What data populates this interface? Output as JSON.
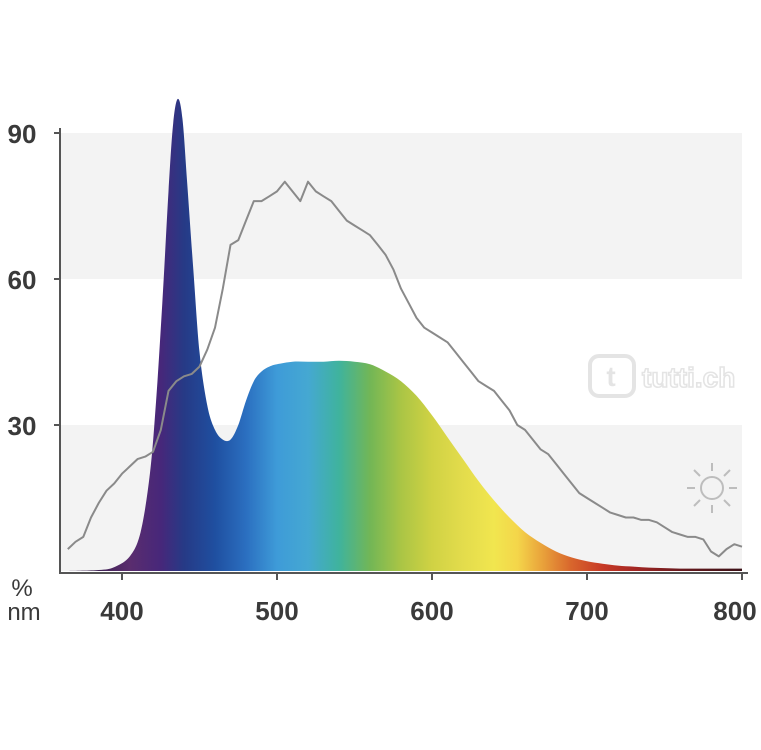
{
  "chart_data": {
    "type": "area",
    "title": "",
    "xlabel": "nm",
    "ylabel": "%",
    "xlim": [
      360,
      800
    ],
    "ylim": [
      0,
      105
    ],
    "x_ticks": [
      400,
      500,
      600,
      700,
      800
    ],
    "y_ticks": [
      30,
      60,
      90
    ],
    "x_tick_labels": [
      "400",
      "500",
      "600",
      "700",
      "800"
    ],
    "y_tick_labels": [
      "30",
      "60",
      "90"
    ],
    "bands": [
      [
        0,
        30
      ],
      [
        60,
        90
      ]
    ],
    "band_color": "#f3f3f3",
    "grid": false,
    "series": [
      {
        "kind": "filled-spectrum",
        "x": [
          365,
          385,
          395,
          405,
          412,
          418,
          422,
          426,
          430,
          433,
          436,
          439,
          442,
          446,
          450,
          455,
          460,
          465,
          470,
          475,
          480,
          485,
          490,
          495,
          500,
          510,
          520,
          530,
          540,
          550,
          560,
          570,
          580,
          590,
          600,
          610,
          620,
          630,
          640,
          650,
          660,
          670,
          680,
          690,
          700,
          710,
          720,
          730,
          740,
          750,
          760,
          770,
          780,
          790,
          800
        ],
        "y": [
          0,
          0.2,
          0.8,
          3,
          8,
          20,
          35,
          55,
          78,
          92,
          97,
          93,
          80,
          62,
          45,
          34,
          29,
          27,
          27,
          30,
          35,
          39,
          41,
          42,
          42.5,
          43,
          43,
          43,
          43.2,
          43,
          42.5,
          41,
          39,
          36,
          32,
          27.5,
          23,
          18.5,
          14.5,
          11,
          8,
          5.8,
          4,
          2.8,
          2,
          1.5,
          1.1,
          0.9,
          0.7,
          0.6,
          0.5,
          0.5,
          0.5,
          0.5,
          0.5
        ]
      },
      {
        "kind": "reference-line",
        "color": "#8a8a8a",
        "x": [
          365,
          370,
          375,
          380,
          385,
          390,
          395,
          400,
          405,
          410,
          415,
          420,
          425,
          430,
          435,
          440,
          445,
          450,
          455,
          460,
          465,
          470,
          475,
          480,
          485,
          490,
          495,
          500,
          505,
          510,
          515,
          520,
          525,
          530,
          535,
          540,
          545,
          550,
          555,
          560,
          565,
          570,
          575,
          580,
          585,
          590,
          595,
          600,
          605,
          610,
          615,
          620,
          625,
          630,
          635,
          640,
          645,
          650,
          655,
          660,
          665,
          670,
          675,
          680,
          685,
          690,
          695,
          700,
          705,
          710,
          715,
          720,
          725,
          730,
          735,
          740,
          745,
          750,
          755,
          760,
          765,
          770,
          775,
          780,
          785,
          790,
          795,
          800
        ],
        "y": [
          4.5,
          6,
          7,
          11,
          14,
          16.5,
          18,
          20,
          21.5,
          23,
          23.5,
          24.5,
          29,
          37,
          39,
          40,
          40.5,
          42,
          45.5,
          50,
          58,
          67,
          68,
          72,
          76,
          76,
          77,
          78,
          80,
          78,
          76,
          80,
          78,
          77,
          76,
          74,
          72,
          71,
          70,
          69,
          67,
          65,
          62,
          58,
          55,
          52,
          50,
          49,
          48,
          47,
          45,
          43,
          41,
          39,
          38,
          37,
          35,
          33,
          30,
          29,
          27,
          25,
          24,
          22,
          20,
          18,
          16,
          15,
          14,
          13,
          12,
          11.5,
          11,
          11,
          10.5,
          10.5,
          10,
          9,
          8,
          7.5,
          7,
          7,
          6.5,
          4,
          3,
          4.5,
          5.5,
          5
        ]
      }
    ],
    "spectrum_colors": [
      {
        "nm": 380,
        "color": "#3a1f4f"
      },
      {
        "nm": 405,
        "color": "#5a2d6e"
      },
      {
        "nm": 425,
        "color": "#47277a"
      },
      {
        "nm": 440,
        "color": "#263a86"
      },
      {
        "nm": 460,
        "color": "#1f4fa0"
      },
      {
        "nm": 480,
        "color": "#2b6fc0"
      },
      {
        "nm": 500,
        "color": "#3e9bd8"
      },
      {
        "nm": 520,
        "color": "#45a8d2"
      },
      {
        "nm": 540,
        "color": "#3fb39d"
      },
      {
        "nm": 560,
        "color": "#72b656"
      },
      {
        "nm": 580,
        "color": "#aac545"
      },
      {
        "nm": 600,
        "color": "#d0d244"
      },
      {
        "nm": 620,
        "color": "#e3dc4c"
      },
      {
        "nm": 640,
        "color": "#f1e64f"
      },
      {
        "nm": 655,
        "color": "#f4d64a"
      },
      {
        "nm": 670,
        "color": "#eaa63c"
      },
      {
        "nm": 690,
        "color": "#d8652c"
      },
      {
        "nm": 710,
        "color": "#c73a26"
      },
      {
        "nm": 730,
        "color": "#a52723"
      },
      {
        "nm": 760,
        "color": "#6a1a1e"
      },
      {
        "nm": 800,
        "color": "#3b1117"
      }
    ]
  },
  "watermark": {
    "text": "tutti.ch",
    "logo_letters": "t"
  },
  "icons": {
    "daylight": "sun-icon"
  }
}
